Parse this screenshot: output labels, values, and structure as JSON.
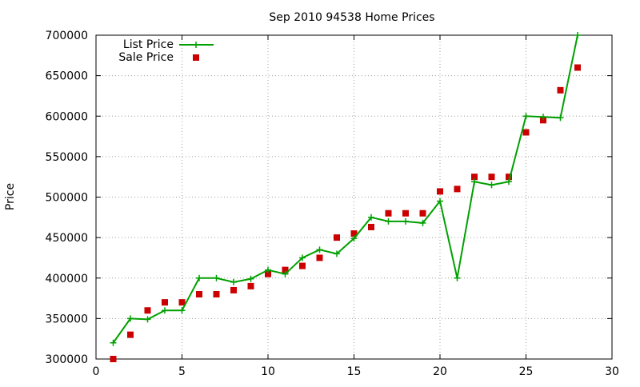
{
  "chart_data": {
    "type": "line",
    "title": "Sep 2010 94538 Home Prices",
    "xlabel": "",
    "ylabel": "Price",
    "xlim": [
      0,
      30
    ],
    "ylim": [
      300000,
      700000
    ],
    "x_ticks": [
      0,
      5,
      10,
      15,
      20,
      25,
      30
    ],
    "y_ticks": [
      300000,
      350000,
      400000,
      450000,
      500000,
      550000,
      600000,
      650000,
      700000
    ],
    "grid": true,
    "legend_position": "top-left",
    "series": [
      {
        "name": "List Price",
        "kind": "line-with-plus-markers",
        "color": "#00a000",
        "x": [
          1,
          2,
          3,
          4,
          5,
          6,
          7,
          8,
          9,
          10,
          11,
          12,
          13,
          14,
          15,
          16,
          17,
          18,
          19,
          20,
          21,
          22,
          23,
          24,
          25,
          26,
          27,
          28
        ],
        "y": [
          320000,
          350000,
          349000,
          360000,
          360000,
          400000,
          400000,
          395000,
          399000,
          410000,
          405000,
          425000,
          435000,
          430000,
          449000,
          475000,
          470000,
          470000,
          468000,
          495000,
          400000,
          519000,
          515000,
          519000,
          600000,
          599000,
          598000,
          700000
        ]
      },
      {
        "name": "Sale Price",
        "kind": "square-markers",
        "color": "#cc0000",
        "x": [
          1,
          2,
          3,
          4,
          5,
          6,
          7,
          8,
          9,
          10,
          11,
          12,
          13,
          14,
          15,
          16,
          17,
          18,
          19,
          20,
          21,
          22,
          23,
          24,
          25,
          26,
          27,
          28
        ],
        "y": [
          300000,
          330000,
          360000,
          370000,
          370000,
          380000,
          380000,
          385000,
          390000,
          405000,
          410000,
          415000,
          425000,
          450000,
          455000,
          463000,
          480000,
          480000,
          480000,
          507000,
          510000,
          525000,
          525000,
          525000,
          580000,
          595000,
          632000,
          660000
        ]
      }
    ]
  }
}
